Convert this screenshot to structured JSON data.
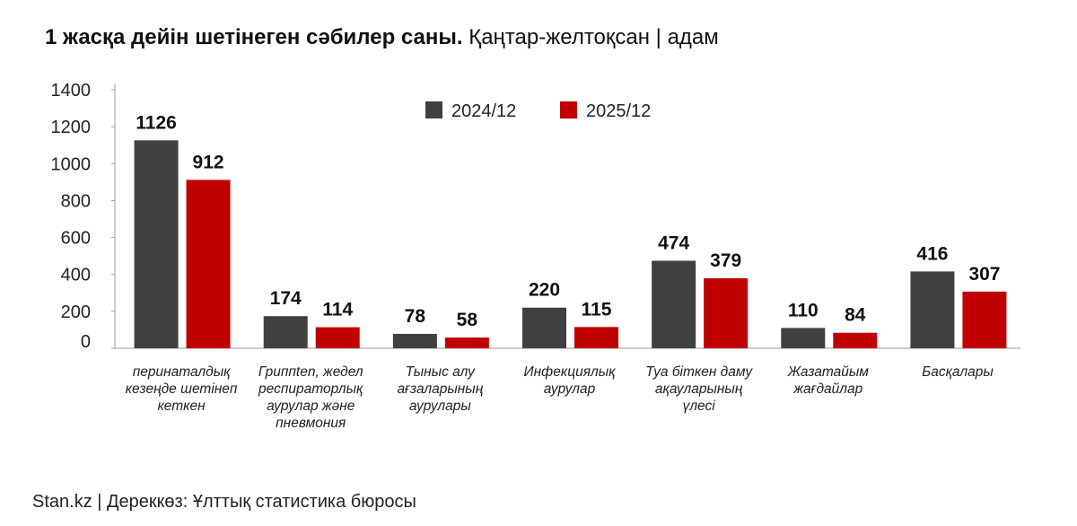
{
  "header": {
    "title_bold": "1 жасқа дейін шетінеген сәбилер саны.",
    "title_rest": " Қаңтар-желтоқсан | адам"
  },
  "footer": {
    "source": "Stan.kz | Дереккөз: Ұлттық статистика бюросы"
  },
  "chart_data": {
    "type": "bar",
    "title": "1 жасқа дейін шетінеген сәбилер саны. Қаңтар-желтоқсан | адам",
    "categories": [
      [
        "перинаталдық",
        "кезеңде шетінеп",
        "кеткен"
      ],
      [
        "Гриппten, жедел",
        "респираторлық",
        "аурулар және",
        "пневмония"
      ],
      [
        "Тыныс алу",
        "ағзаларының",
        "аурулары"
      ],
      [
        "Инфекциялық",
        "аурулар"
      ],
      [
        "Туа біткен даму",
        "ақауларының",
        "үлесі"
      ],
      [
        "Жазатайым",
        "жағдайлар"
      ],
      [
        "Басқалары"
      ]
    ],
    "series": [
      {
        "name": "2024/12",
        "color": "#404040",
        "values": [
          1126,
          174,
          78,
          220,
          474,
          110,
          416
        ]
      },
      {
        "name": "2025/12",
        "color": "#c00000",
        "values": [
          912,
          114,
          58,
          115,
          379,
          84,
          307
        ]
      }
    ],
    "ylim": [
      0,
      1400
    ],
    "yticks": [
      0,
      200,
      400,
      600,
      800,
      1000,
      1200,
      1400
    ],
    "grid": false,
    "legend_position": "top-center"
  }
}
